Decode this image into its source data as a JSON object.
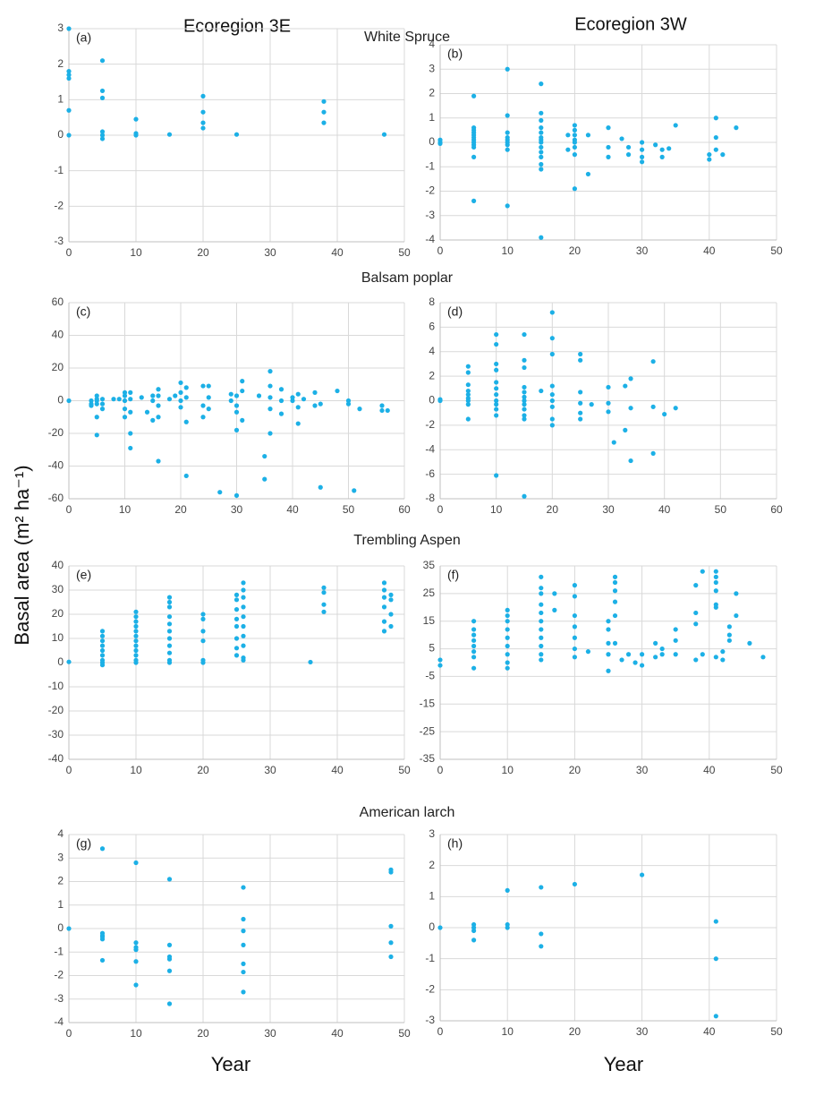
{
  "column_titles": [
    "Ecoregion 3E",
    "Ecoregion 3W"
  ],
  "row_titles": [
    "White Spruce",
    "Balsam poplar",
    "Trembling Aspen",
    "American larch"
  ],
  "ylabel": "Basal area (m² ha⁻¹)",
  "xlabels": [
    "Year",
    "Year"
  ],
  "chart_data": [
    {
      "type": "scatter",
      "label": "(a)",
      "color": "#1cb0e6",
      "grid": true,
      "xlim": [
        0,
        50
      ],
      "ylim": [
        -3,
        3
      ],
      "xticks": [
        0,
        10,
        20,
        30,
        40,
        50
      ],
      "yticks": [
        -3,
        -2,
        -1,
        0,
        1,
        2,
        3
      ],
      "x": [
        0,
        0,
        0,
        0,
        0,
        0,
        5,
        5,
        5,
        5,
        5,
        5,
        10,
        10,
        10,
        15,
        20,
        20,
        20,
        20,
        25,
        38,
        38,
        38,
        47
      ],
      "values": [
        3,
        1.8,
        1.7,
        1.6,
        0.7,
        0,
        2.1,
        1.25,
        1.05,
        0.1,
        0,
        -0.1,
        0.45,
        0.05,
        0,
        0.02,
        1.1,
        0.65,
        0.35,
        0.2,
        0.02,
        0.95,
        0.65,
        0.35,
        0.02
      ]
    },
    {
      "type": "scatter",
      "label": "(b)",
      "color": "#1cb0e6",
      "grid": true,
      "xlim": [
        0,
        50
      ],
      "ylim": [
        -4,
        4
      ],
      "xticks": [
        0,
        10,
        20,
        30,
        40,
        50
      ],
      "yticks": [
        -4,
        -3,
        -2,
        -1,
        0,
        1,
        2,
        3,
        4
      ],
      "x": [
        0,
        0,
        0,
        5,
        5,
        5,
        5,
        5,
        5,
        5,
        5,
        5,
        5,
        5,
        5,
        10,
        10,
        10,
        10,
        10,
        10,
        10,
        10,
        10,
        15,
        15,
        15,
        15,
        15,
        15,
        15,
        15,
        15,
        15,
        15,
        15,
        15,
        15,
        19,
        19,
        20,
        20,
        20,
        20,
        20,
        20,
        20,
        20,
        22,
        22,
        25,
        25,
        25,
        27,
        28,
        28,
        30,
        30,
        30,
        30,
        32,
        33,
        33,
        34,
        35,
        40,
        40,
        41,
        41,
        41,
        42,
        44
      ],
      "values": [
        0.1,
        0,
        -0.05,
        1.9,
        0.6,
        0.5,
        0.4,
        0.3,
        0.2,
        0.1,
        0,
        -0.1,
        -0.2,
        -0.6,
        -2.4,
        3,
        1.1,
        0.4,
        0.2,
        0.1,
        0,
        -0.1,
        -0.3,
        -2.6,
        2.4,
        1.2,
        0.9,
        0.6,
        0.4,
        0.2,
        0.1,
        0,
        -0.2,
        -0.4,
        -0.6,
        -0.9,
        -1.1,
        -3.9,
        0.3,
        -0.3,
        0.7,
        0.5,
        0.3,
        0.1,
        0,
        -0.2,
        -0.5,
        -1.9,
        0.3,
        -1.3,
        0.6,
        -0.2,
        -0.6,
        0.15,
        -0.2,
        -0.5,
        0,
        -0.3,
        -0.6,
        -0.8,
        -0.1,
        -0.3,
        -0.6,
        -0.25,
        0.7,
        -0.5,
        -0.7,
        1,
        0.2,
        -0.3,
        -0.5,
        0.6
      ]
    },
    {
      "type": "scatter",
      "label": "(c)",
      "color": "#1cb0e6",
      "grid": true,
      "xlim": [
        0,
        60
      ],
      "ylim": [
        -60,
        60
      ],
      "xticks": [
        0,
        10,
        20,
        30,
        40,
        50,
        60
      ],
      "yticks": [
        -60,
        -40,
        -20,
        0,
        20,
        40,
        60
      ],
      "x": [
        0,
        4,
        4,
        4,
        5,
        5,
        5,
        5,
        5,
        5,
        6,
        6,
        6,
        8,
        9,
        10,
        10,
        10,
        10,
        10,
        11,
        11,
        11,
        11,
        11,
        13,
        14,
        15,
        15,
        15,
        16,
        16,
        16,
        16,
        16,
        18,
        19,
        20,
        20,
        20,
        20,
        21,
        21,
        21,
        21,
        24,
        24,
        24,
        25,
        25,
        25,
        27,
        29,
        29,
        30,
        30,
        30,
        30,
        30,
        31,
        31,
        31,
        34,
        35,
        35,
        36,
        36,
        36,
        36,
        36,
        38,
        38,
        38,
        40,
        40,
        41,
        41,
        41,
        42,
        44,
        44,
        45,
        45,
        48,
        50,
        50,
        51,
        52,
        56,
        56,
        57
      ],
      "values": [
        0,
        0,
        -2,
        -3,
        3,
        1,
        0,
        -2,
        -10,
        -21,
        1,
        -2,
        -5,
        1,
        1,
        5,
        3,
        0,
        -5,
        -10,
        5,
        1,
        -7,
        -20,
        -29,
        2,
        -7,
        3,
        0,
        -12,
        7,
        3,
        -3,
        -10,
        -37,
        1,
        3,
        11,
        5,
        0,
        -4,
        8,
        2,
        -13,
        -46,
        9,
        -3,
        -10,
        9,
        2,
        -5,
        -56,
        4,
        0,
        3,
        -3,
        -7,
        -18,
        -58,
        12,
        6,
        -12,
        3,
        -34,
        -48,
        18,
        9,
        2,
        -5,
        -20,
        7,
        0,
        -8,
        2,
        0,
        4,
        -4,
        -14,
        1,
        5,
        -3,
        -2,
        -53,
        6,
        0,
        -2,
        -55,
        -5,
        -3,
        -6,
        -6
      ]
    },
    {
      "type": "scatter",
      "label": "(d)",
      "color": "#1cb0e6",
      "grid": true,
      "xlim": [
        0,
        60
      ],
      "ylim": [
        -8,
        8
      ],
      "xticks": [
        0,
        10,
        20,
        30,
        40,
        50,
        60
      ],
      "yticks": [
        -8,
        -6,
        -4,
        -2,
        0,
        2,
        4,
        6,
        8
      ],
      "x": [
        0,
        0,
        5,
        5,
        5,
        5,
        5,
        5,
        5,
        5,
        5,
        10,
        10,
        10,
        10,
        10,
        10,
        10,
        10,
        10,
        10,
        10,
        10,
        15,
        15,
        15,
        15,
        15,
        15,
        15,
        15,
        15,
        15,
        15,
        15,
        18,
        20,
        20,
        20,
        20,
        20,
        20,
        20,
        20,
        20,
        25,
        25,
        25,
        25,
        25,
        25,
        27,
        30,
        30,
        30,
        31,
        33,
        33,
        34,
        34,
        34,
        38,
        38,
        38,
        40,
        42
      ],
      "values": [
        0.1,
        0,
        2.8,
        2.3,
        1.3,
        0.8,
        0.5,
        0.2,
        0,
        -0.3,
        -1.5,
        5.4,
        4.6,
        3,
        2.5,
        1.5,
        1,
        0.5,
        0,
        -0.3,
        -0.7,
        -1.2,
        -6.1,
        5.4,
        3.3,
        2.7,
        1.1,
        0.7,
        0.3,
        0,
        -0.3,
        -0.7,
        -1.2,
        -1.5,
        -7.8,
        0.8,
        7.2,
        5.1,
        3.8,
        1.2,
        0.5,
        0,
        -0.5,
        -1.5,
        -2,
        3.8,
        3.3,
        0.7,
        -0.2,
        -1,
        -1.5,
        -0.3,
        1.1,
        -0.2,
        -0.9,
        -3.4,
        1.2,
        -2.4,
        1.8,
        -0.6,
        -4.9,
        3.2,
        -0.5,
        -4.3,
        -1.1,
        -0.6
      ]
    },
    {
      "type": "scatter",
      "label": "(e)",
      "color": "#1cb0e6",
      "grid": true,
      "xlim": [
        0,
        50
      ],
      "ylim": [
        -40,
        40
      ],
      "xticks": [
        0,
        10,
        20,
        30,
        40,
        50
      ],
      "yticks": [
        -40,
        -30,
        -20,
        -10,
        0,
        10,
        20,
        30,
        40
      ],
      "x": [
        0,
        5,
        5,
        5,
        5,
        5,
        5,
        5,
        5,
        5,
        10,
        10,
        10,
        10,
        10,
        10,
        10,
        10,
        10,
        10,
        10,
        10,
        15,
        15,
        15,
        15,
        15,
        15,
        15,
        15,
        15,
        15,
        15,
        20,
        20,
        20,
        20,
        20,
        20,
        25,
        25,
        25,
        25,
        25,
        25,
        25,
        25,
        26,
        26,
        26,
        26,
        26,
        26,
        26,
        26,
        26,
        26,
        36,
        38,
        38,
        38,
        38,
        47,
        47,
        47,
        47,
        47,
        47,
        48,
        48,
        48,
        48
      ],
      "values": [
        0.3,
        13,
        11,
        9,
        7,
        5,
        3,
        1,
        0,
        -1,
        21,
        19,
        17,
        15,
        13,
        11,
        9,
        7,
        5,
        3,
        1,
        0,
        27,
        25,
        23,
        19,
        16,
        13,
        10,
        7,
        4,
        1,
        0,
        20,
        18,
        13,
        9,
        1,
        0,
        28,
        26,
        22,
        18,
        15,
        10,
        6,
        3,
        33,
        30,
        27,
        23,
        19,
        15,
        11,
        7,
        2,
        1,
        0.2,
        31,
        29,
        24,
        21,
        33,
        30,
        27,
        23,
        17,
        13,
        28,
        26,
        20,
        15
      ]
    },
    {
      "type": "scatter",
      "label": "(f)",
      "color": "#1cb0e6",
      "grid": true,
      "xlim": [
        0,
        50
      ],
      "ylim": [
        -35,
        35
      ],
      "xticks": [
        0,
        10,
        20,
        30,
        40,
        50
      ],
      "yticks": [
        -35,
        -25,
        -15,
        -5,
        5,
        15,
        25,
        35
      ],
      "x": [
        0,
        0,
        5,
        5,
        5,
        5,
        5,
        5,
        5,
        5,
        10,
        10,
        10,
        10,
        10,
        10,
        10,
        10,
        10,
        15,
        15,
        15,
        15,
        15,
        15,
        15,
        15,
        15,
        15,
        15,
        17,
        17,
        20,
        20,
        20,
        20,
        20,
        20,
        20,
        22,
        25,
        25,
        25,
        25,
        25,
        26,
        26,
        26,
        26,
        26,
        26,
        27,
        28,
        29,
        30,
        30,
        32,
        32,
        33,
        33,
        35,
        35,
        35,
        38,
        38,
        38,
        38,
        39,
        39,
        41,
        41,
        41,
        41,
        41,
        41,
        41,
        42,
        42,
        43,
        43,
        43,
        44,
        44,
        46,
        48
      ],
      "values": [
        1,
        -1,
        15,
        12,
        10,
        8,
        6,
        4,
        2,
        -2,
        19,
        17,
        15,
        12,
        9,
        6,
        3,
        0,
        -2,
        31,
        27,
        25,
        21,
        18,
        15,
        12,
        9,
        6,
        3,
        1,
        25,
        19,
        28,
        24,
        17,
        13,
        9,
        5,
        2,
        4,
        15,
        12,
        7,
        3,
        -3,
        31,
        29,
        26,
        22,
        17,
        7,
        1,
        3,
        0,
        3,
        -1,
        7,
        2,
        5,
        3,
        12,
        8,
        3,
        28,
        18,
        14,
        1,
        33,
        3,
        33,
        31,
        29,
        26,
        21,
        20,
        2,
        4,
        1,
        13,
        10,
        8,
        25,
        17,
        7,
        2
      ]
    },
    {
      "type": "scatter",
      "label": "(g)",
      "color": "#1cb0e6",
      "grid": true,
      "xlim": [
        0,
        50
      ],
      "ylim": [
        -4,
        4
      ],
      "xticks": [
        0,
        10,
        20,
        30,
        40,
        50
      ],
      "yticks": [
        -4,
        -3,
        -2,
        -1,
        0,
        1,
        2,
        3,
        4
      ],
      "x": [
        0,
        5,
        5,
        5,
        5,
        5,
        5,
        10,
        10,
        10,
        10,
        10,
        10,
        15,
        15,
        15,
        15,
        15,
        15,
        26,
        26,
        26,
        26,
        26,
        26,
        26,
        48,
        48,
        48,
        48,
        48
      ],
      "values": [
        0,
        3.4,
        -0.2,
        -0.3,
        -0.35,
        -0.45,
        -1.35,
        2.8,
        -0.6,
        -0.8,
        -0.9,
        -1.4,
        -2.4,
        2.1,
        -0.7,
        -1.2,
        -1.3,
        -1.8,
        -3.2,
        1.75,
        0.4,
        -0.1,
        -0.7,
        -1.5,
        -1.85,
        -2.7,
        2.5,
        2.4,
        0.1,
        -0.6,
        -1.2
      ]
    },
    {
      "type": "scatter",
      "label": "(h)",
      "color": "#1cb0e6",
      "grid": true,
      "xlim": [
        0,
        50
      ],
      "ylim": [
        -3,
        3
      ],
      "xticks": [
        0,
        10,
        20,
        30,
        40,
        50
      ],
      "yticks": [
        -3,
        -2,
        -1,
        0,
        1,
        2,
        3
      ],
      "x": [
        0,
        5,
        5,
        5,
        5,
        10,
        10,
        10,
        15,
        15,
        15,
        20,
        30,
        41,
        41,
        41
      ],
      "values": [
        0,
        0.1,
        0,
        -0.1,
        -0.4,
        1.2,
        0.1,
        0,
        1.3,
        -0.2,
        -0.6,
        1.4,
        1.7,
        0.2,
        -1,
        -2.85
      ]
    }
  ]
}
